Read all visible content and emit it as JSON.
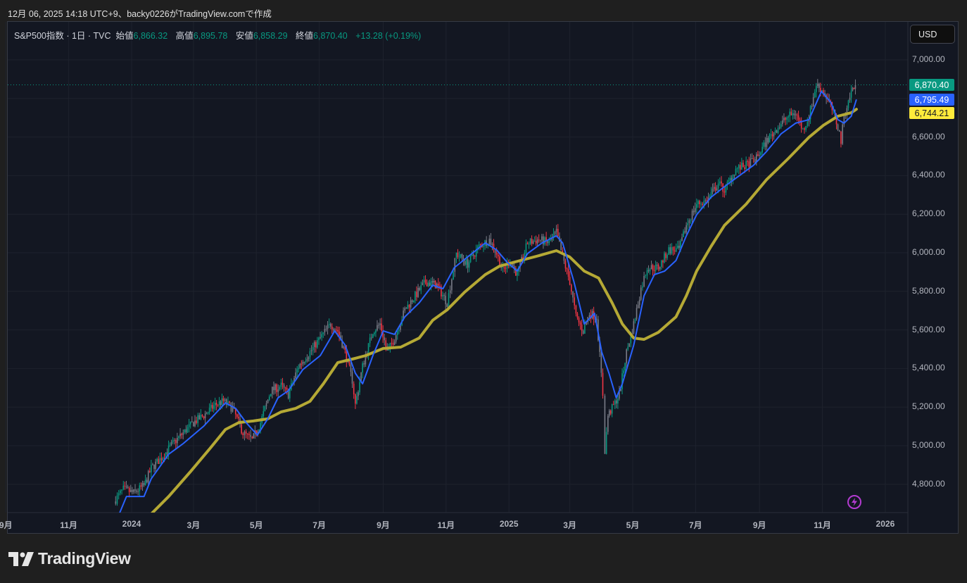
{
  "caption": "12月 06, 2025 14:18 UTC+9、backy0226がTradingView.comで作成",
  "legend": {
    "symbol": "S&P500指数 · 1日 · TVC",
    "open_label": "始値",
    "open": "6,866.32",
    "high_label": "高値",
    "high": "6,895.78",
    "low_label": "安値",
    "low": "6,858.29",
    "close_label": "終値",
    "close": "6,870.40",
    "change": "+13.28 (+0.19%)"
  },
  "currency_button": "USD",
  "price_labels": {
    "last": "6,870.40",
    "ma_fast": "6,795.49",
    "ma_slow": "6,744.21"
  },
  "brand": "TradingView",
  "colors": {
    "up": "#089981",
    "down": "#f23645",
    "ma_fast": "#2962ff",
    "ma_slow": "#b5a935",
    "last": "#089981",
    "ma_slow_label": "#ffeb3b"
  },
  "chart_data": {
    "type": "line",
    "title": "S&P500指数 · 1日 · TVC",
    "x_unit": "days since 2024-01-01",
    "ylim": [
      4680,
      7100
    ],
    "grid": true,
    "y_ticks": [
      4800,
      5000,
      5200,
      5400,
      5600,
      5800,
      6000,
      6200,
      6400,
      6600,
      6800,
      7000
    ],
    "y_tick_labels": [
      "4,800.00",
      "5,000.00",
      "5,200.00",
      "5,400.00",
      "5,600.00",
      "5,800.00",
      "6,000.00",
      "6,200.00",
      "6,400.00",
      "6,600.00",
      "",
      "7,000.00"
    ],
    "x_ticks": [
      {
        "t": -122,
        "label": "9月"
      },
      {
        "t": -61,
        "label": "11月"
      },
      {
        "t": 0,
        "label": "2024"
      },
      {
        "t": 60,
        "label": "3月"
      },
      {
        "t": 121,
        "label": "5月"
      },
      {
        "t": 182,
        "label": "7月"
      },
      {
        "t": 244,
        "label": "9月"
      },
      {
        "t": 305,
        "label": "11月"
      },
      {
        "t": 366,
        "label": "2025"
      },
      {
        "t": 425,
        "label": "3月"
      },
      {
        "t": 486,
        "label": "5月"
      },
      {
        "t": 547,
        "label": "7月"
      },
      {
        "t": 609,
        "label": "9月"
      },
      {
        "t": 670,
        "label": "11月"
      },
      {
        "t": 731,
        "label": "2026"
      }
    ],
    "last_price": 6870.4,
    "series": [
      {
        "name": "price",
        "kind": "candles",
        "points": [
          [
            -17,
            4711
          ],
          [
            -8,
            4774
          ],
          [
            2,
            4755
          ],
          [
            12,
            4792
          ],
          [
            19,
            4883
          ],
          [
            29,
            4938
          ],
          [
            40,
            5011
          ],
          [
            50,
            5066
          ],
          [
            60,
            5120
          ],
          [
            70,
            5157
          ],
          [
            81,
            5212
          ],
          [
            89,
            5230
          ],
          [
            98,
            5193
          ],
          [
            108,
            5066
          ],
          [
            117,
            5029
          ],
          [
            125,
            5120
          ],
          [
            135,
            5285
          ],
          [
            145,
            5310
          ],
          [
            152,
            5266
          ],
          [
            162,
            5412
          ],
          [
            173,
            5485
          ],
          [
            183,
            5558
          ],
          [
            193,
            5631
          ],
          [
            200,
            5595
          ],
          [
            207,
            5485
          ],
          [
            214,
            5339
          ],
          [
            217,
            5212
          ],
          [
            224,
            5412
          ],
          [
            234,
            5595
          ],
          [
            241,
            5631
          ],
          [
            248,
            5485
          ],
          [
            255,
            5558
          ],
          [
            265,
            5704
          ],
          [
            275,
            5777
          ],
          [
            285,
            5850
          ],
          [
            296,
            5832
          ],
          [
            306,
            5741
          ],
          [
            315,
            5996
          ],
          [
            326,
            5942
          ],
          [
            337,
            6033
          ],
          [
            347,
            6069
          ],
          [
            354,
            5996
          ],
          [
            360,
            5905
          ],
          [
            367,
            5960
          ],
          [
            374,
            5887
          ],
          [
            384,
            6051
          ],
          [
            395,
            6069
          ],
          [
            405,
            6051
          ],
          [
            412,
            6106
          ],
          [
            418,
            5978
          ],
          [
            425,
            5850
          ],
          [
            431,
            5668
          ],
          [
            438,
            5595
          ],
          [
            444,
            5686
          ],
          [
            451,
            5668
          ],
          [
            457,
            5266
          ],
          [
            459,
            4974
          ],
          [
            462,
            5157
          ],
          [
            466,
            5193
          ],
          [
            473,
            5266
          ],
          [
            480,
            5485
          ],
          [
            487,
            5631
          ],
          [
            494,
            5814
          ],
          [
            500,
            5923
          ],
          [
            511,
            5923
          ],
          [
            521,
            6015
          ],
          [
            531,
            6015
          ],
          [
            538,
            6142
          ],
          [
            548,
            6252
          ],
          [
            558,
            6270
          ],
          [
            569,
            6361
          ],
          [
            575,
            6325
          ],
          [
            586,
            6434
          ],
          [
            596,
            6453
          ],
          [
            606,
            6489
          ],
          [
            616,
            6580
          ],
          [
            627,
            6653
          ],
          [
            637,
            6708
          ],
          [
            644,
            6726
          ],
          [
            651,
            6635
          ],
          [
            657,
            6708
          ],
          [
            664,
            6872
          ],
          [
            671,
            6836
          ],
          [
            678,
            6763
          ],
          [
            685,
            6653
          ],
          [
            688,
            6580
          ],
          [
            691,
            6708
          ],
          [
            698,
            6836
          ],
          [
            702,
            6870
          ]
        ]
      },
      {
        "name": "MA fast",
        "kind": "line",
        "points": [
          [
            -12,
            4646
          ],
          [
            -5,
            4737
          ],
          [
            2,
            4737
          ],
          [
            12,
            4737
          ],
          [
            19,
            4828
          ],
          [
            36,
            4956
          ],
          [
            50,
            5011
          ],
          [
            70,
            5102
          ],
          [
            91,
            5222
          ],
          [
            101,
            5193
          ],
          [
            111,
            5120
          ],
          [
            122,
            5055
          ],
          [
            132,
            5139
          ],
          [
            142,
            5248
          ],
          [
            152,
            5285
          ],
          [
            166,
            5394
          ],
          [
            183,
            5467
          ],
          [
            197,
            5595
          ],
          [
            207,
            5522
          ],
          [
            217,
            5376
          ],
          [
            224,
            5321
          ],
          [
            234,
            5467
          ],
          [
            244,
            5595
          ],
          [
            255,
            5577
          ],
          [
            265,
            5668
          ],
          [
            279,
            5741
          ],
          [
            292,
            5832
          ],
          [
            302,
            5814
          ],
          [
            313,
            5923
          ],
          [
            330,
            5996
          ],
          [
            343,
            6051
          ],
          [
            354,
            6015
          ],
          [
            364,
            5952
          ],
          [
            374,
            5905
          ],
          [
            384,
            5996
          ],
          [
            398,
            6051
          ],
          [
            412,
            6088
          ],
          [
            418,
            6051
          ],
          [
            429,
            5850
          ],
          [
            439,
            5631
          ],
          [
            449,
            5686
          ],
          [
            456,
            5485
          ],
          [
            463,
            5376
          ],
          [
            470,
            5248
          ],
          [
            476,
            5321
          ],
          [
            487,
            5522
          ],
          [
            497,
            5777
          ],
          [
            507,
            5887
          ],
          [
            517,
            5905
          ],
          [
            528,
            5960
          ],
          [
            538,
            6088
          ],
          [
            548,
            6197
          ],
          [
            562,
            6288
          ],
          [
            575,
            6343
          ],
          [
            589,
            6398
          ],
          [
            603,
            6453
          ],
          [
            616,
            6526
          ],
          [
            630,
            6617
          ],
          [
            644,
            6672
          ],
          [
            657,
            6690
          ],
          [
            669,
            6836
          ],
          [
            678,
            6781
          ],
          [
            685,
            6690
          ],
          [
            691,
            6672
          ],
          [
            698,
            6708
          ],
          [
            703,
            6795
          ]
        ]
      },
      {
        "name": "MA slow",
        "kind": "line",
        "points": [
          [
            19,
            4646
          ],
          [
            36,
            4737
          ],
          [
            57,
            4865
          ],
          [
            77,
            4992
          ],
          [
            91,
            5084
          ],
          [
            104,
            5120
          ],
          [
            118,
            5128
          ],
          [
            132,
            5139
          ],
          [
            145,
            5175
          ],
          [
            159,
            5193
          ],
          [
            173,
            5230
          ],
          [
            186,
            5321
          ],
          [
            200,
            5431
          ],
          [
            214,
            5449
          ],
          [
            227,
            5467
          ],
          [
            244,
            5504
          ],
          [
            261,
            5511
          ],
          [
            279,
            5558
          ],
          [
            292,
            5650
          ],
          [
            306,
            5704
          ],
          [
            323,
            5796
          ],
          [
            343,
            5887
          ],
          [
            357,
            5931
          ],
          [
            377,
            5960
          ],
          [
            395,
            5985
          ],
          [
            412,
            6011
          ],
          [
            425,
            5978
          ],
          [
            439,
            5905
          ],
          [
            453,
            5869
          ],
          [
            466,
            5741
          ],
          [
            476,
            5631
          ],
          [
            487,
            5558
          ],
          [
            497,
            5551
          ],
          [
            511,
            5588
          ],
          [
            528,
            5668
          ],
          [
            538,
            5777
          ],
          [
            548,
            5905
          ],
          [
            562,
            6033
          ],
          [
            575,
            6142
          ],
          [
            596,
            6252
          ],
          [
            616,
            6380
          ],
          [
            637,
            6489
          ],
          [
            657,
            6599
          ],
          [
            671,
            6661
          ],
          [
            685,
            6708
          ],
          [
            698,
            6726
          ],
          [
            703,
            6744
          ]
        ]
      }
    ]
  }
}
